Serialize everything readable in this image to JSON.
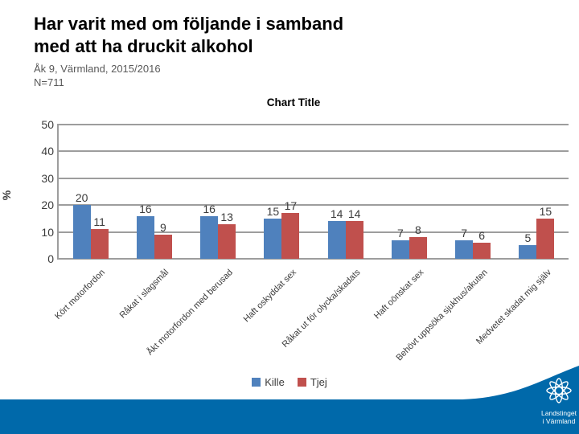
{
  "slide": {
    "title_line1": "Har varit med om följande i samband",
    "title_line2": "med att ha druckit alkohol",
    "subtitle": "Åk 9, Värmland, 2015/2016",
    "n_label": "N=711"
  },
  "chart_data": {
    "type": "bar",
    "title": "Chart Title",
    "xlabel": "",
    "ylabel": "%",
    "ylim": [
      0,
      50
    ],
    "yticks": [
      0,
      10,
      20,
      30,
      40,
      50
    ],
    "grid": true,
    "legend_position": "bottom",
    "categories": [
      "Kört motorfordon",
      "Råkat i slagsmål",
      "Åkt motorfordon med berusad",
      "Haft oskyddat sex",
      "Råkat ut för olycka/skadats",
      "Haft oönskat sex",
      "Behövt uppsöka sjukhus/akuten",
      "Medvetet skadat mig själv"
    ],
    "series": [
      {
        "name": "Kille",
        "color": "#4F81BD",
        "values": [
          20,
          16,
          16,
          15,
          14,
          7,
          7,
          5
        ]
      },
      {
        "name": "Tjej",
        "color": "#C0504D",
        "values": [
          11,
          9,
          13,
          17,
          14,
          8,
          6,
          15
        ]
      }
    ],
    "gridline_color": "#9d9d9d"
  },
  "footer": {
    "color": "#0069AA",
    "logo_line1": "Landstinget",
    "logo_line2": "i Värmland"
  }
}
